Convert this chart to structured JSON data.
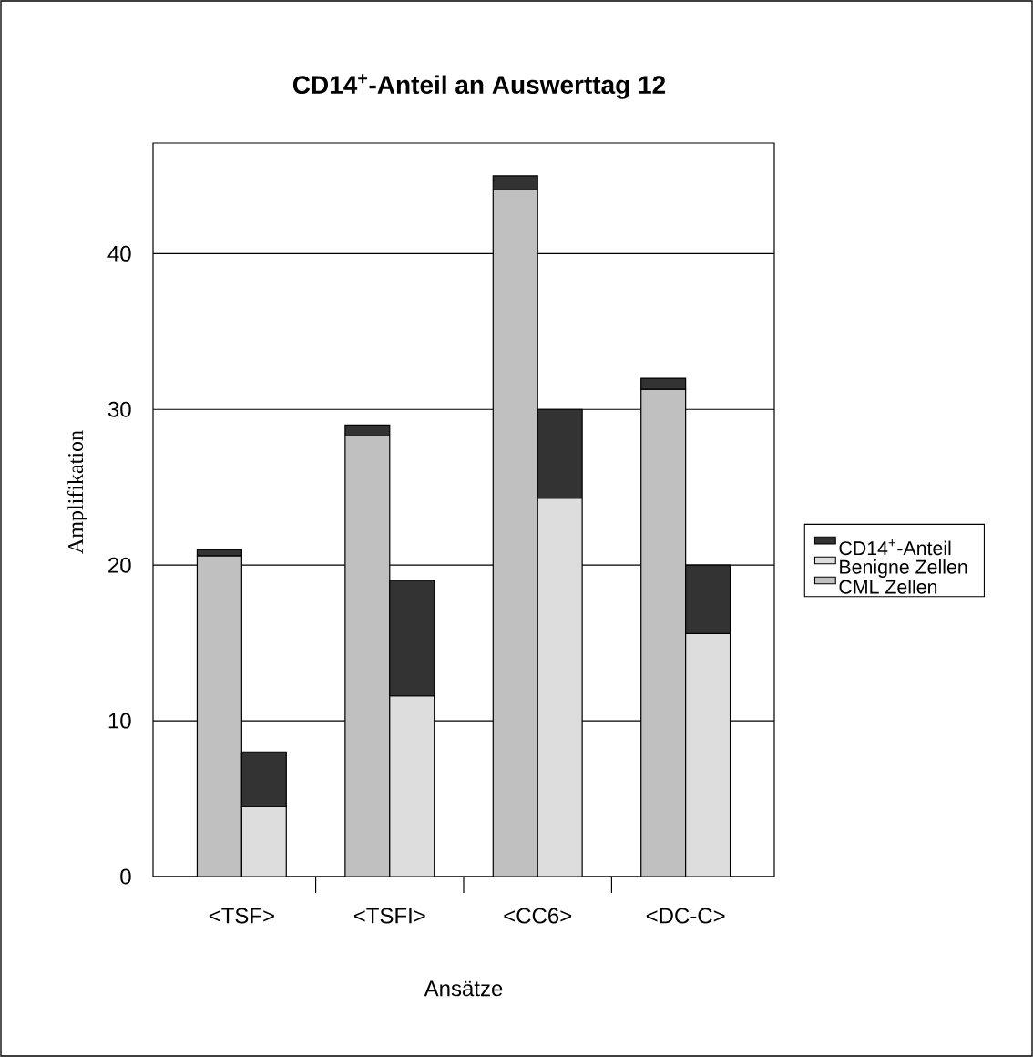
{
  "chart_data": {
    "type": "bar",
    "title": "CD14$^{+}$-Anteil an Auswerttag 12",
    "xlabel": "Ansätze",
    "ylabel": "Amplifikation",
    "categories": [
      null,
      null,
      null,
      null,
      null,
      null,
      null,
      null
    ],
    "annotations": [
      "<TSF>",
      "<TSFI>",
      "<CC6>",
      "<DC-C>"
    ],
    "stacked": true,
    "series": [
      {
        "name": "CML Zellen",
        "color": "#c0c0c0",
        "values": [
          20.6,
          null,
          28.3,
          null,
          44.1,
          null,
          31.3,
          null
        ]
      },
      {
        "name": "Benigne Zellen",
        "color": "#dddddd",
        "values": [
          null,
          4.5,
          null,
          11.6,
          null,
          24.3,
          null,
          15.6
        ]
      },
      {
        "name": "CD14$^{+}$-Anteil",
        "color": "#333333",
        "values": [
          0.4,
          3.5,
          0.7,
          7.4,
          0.9,
          5.7,
          0.7,
          4.4
        ]
      }
    ],
    "ylim": [
      0,
      47.1
    ],
    "yticks": [
      0,
      10,
      20,
      30,
      40
    ],
    "grid": "y",
    "legend": "right"
  }
}
